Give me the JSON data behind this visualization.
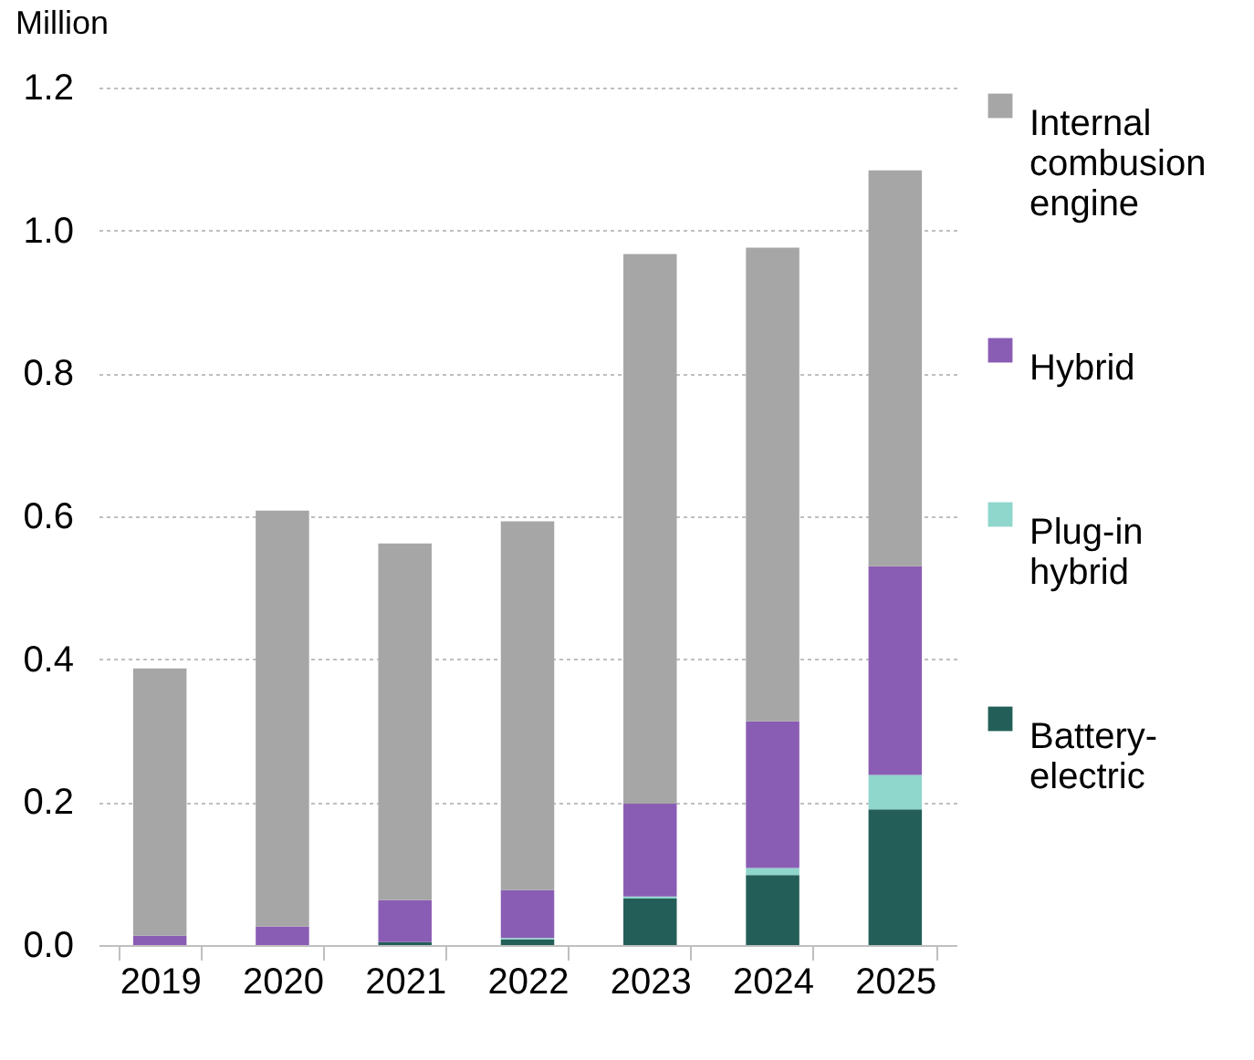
{
  "chart_data": {
    "type": "bar",
    "stacked": true,
    "ylabel": "Million",
    "categories": [
      "2019",
      "2020",
      "2021",
      "2022",
      "2023",
      "2024",
      "2025"
    ],
    "series": [
      {
        "name": "Battery-electric",
        "color": "#235f58",
        "values": [
          0,
          0,
          0.004,
          0.008,
          0.065,
          0.098,
          0.19
        ]
      },
      {
        "name": "Plug-in hybrid",
        "color": "#8fd6cc",
        "values": [
          0,
          0,
          0,
          0.002,
          0.003,
          0.01,
          0.048
        ]
      },
      {
        "name": "Hybrid",
        "color": "#8a5db4",
        "values": [
          0.013,
          0.026,
          0.059,
          0.067,
          0.13,
          0.205,
          0.292
        ]
      },
      {
        "name": "Internal combusion engine",
        "color": "#a6a6a6",
        "values": [
          0.374,
          0.582,
          0.499,
          0.516,
          0.769,
          0.663,
          0.554
        ]
      }
    ],
    "ylim": [
      0,
      1.2
    ],
    "yticks": [
      {
        "value": 0,
        "label": "0.0"
      },
      0.2,
      0.4,
      0.6,
      0.8,
      {
        "value": 1,
        "label": "1.0"
      },
      1.2
    ],
    "grid": "y",
    "legend": "right"
  }
}
